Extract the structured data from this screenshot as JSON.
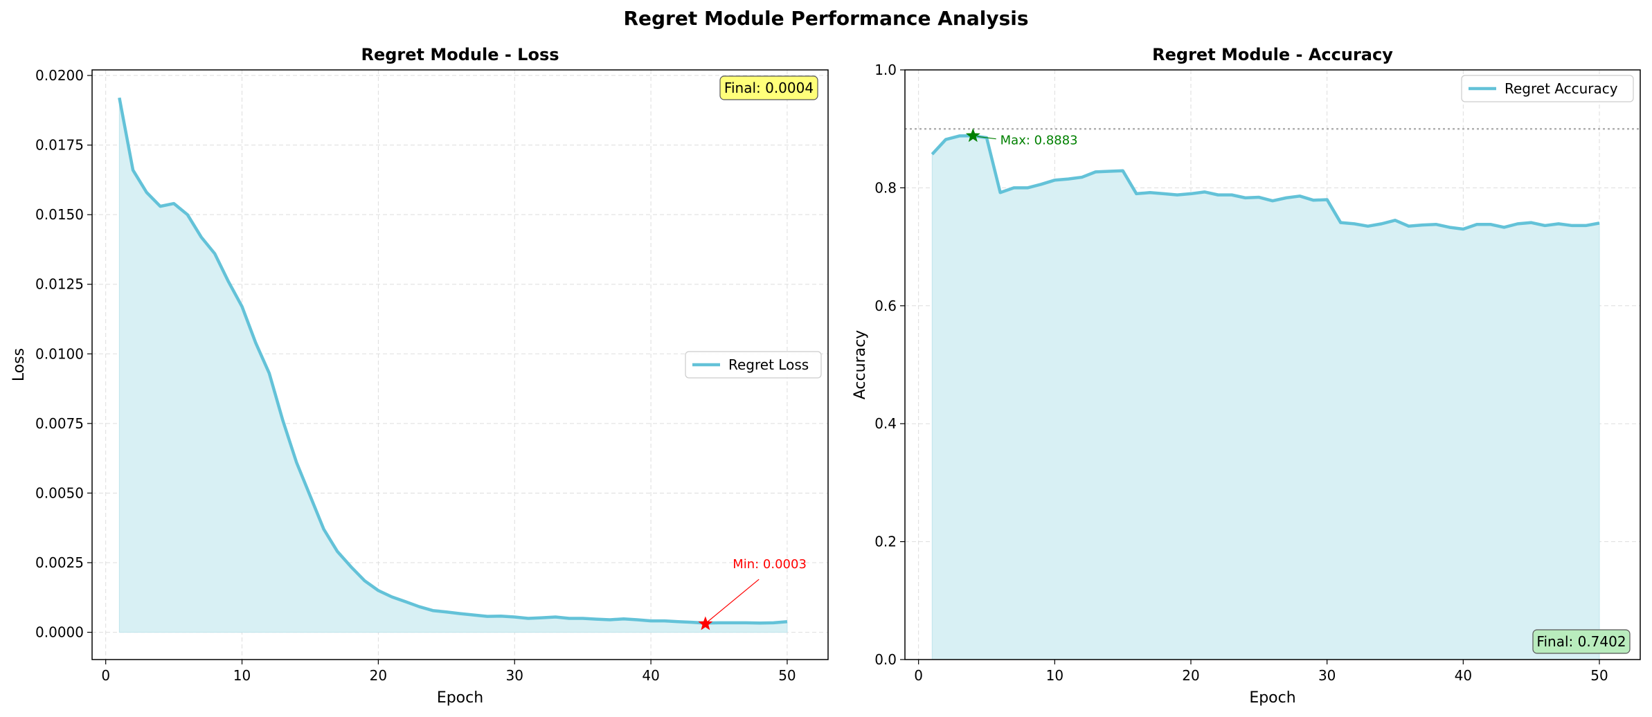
{
  "figure": {
    "suptitle": "Regret Module Performance Analysis"
  },
  "colors": {
    "line": "#63c2d8",
    "fill": "#d8f0f4",
    "grid": "#dddddd",
    "min_marker": "#ff0000",
    "max_marker": "#008000",
    "final_loss_box": "#ffff7a",
    "final_acc_box": "#b9ecbd",
    "ref_line": "#b0b0b0"
  },
  "chart_data": [
    {
      "type": "area",
      "title": "Regret Module - Loss",
      "xlabel": "Epoch",
      "ylabel": "Loss",
      "xlim": [
        -1,
        53
      ],
      "ylim": [
        -0.00098,
        0.0202
      ],
      "xticks": [
        0,
        10,
        20,
        30,
        40,
        50
      ],
      "yticks": [
        0.0,
        0.0025,
        0.005,
        0.0075,
        0.01,
        0.0125,
        0.015,
        0.0175,
        0.02
      ],
      "ytick_labels": [
        "0.0000",
        "0.0025",
        "0.0050",
        "0.0075",
        "0.0100",
        "0.0125",
        "0.0150",
        "0.0175",
        "0.0200"
      ],
      "grid": true,
      "legend_position": "center-right",
      "series": [
        {
          "name": "Regret Loss",
          "x": [
            1,
            2,
            3,
            4,
            5,
            6,
            7,
            8,
            9,
            10,
            11,
            12,
            13,
            14,
            15,
            16,
            17,
            18,
            19,
            20,
            21,
            22,
            23,
            24,
            25,
            26,
            27,
            28,
            29,
            30,
            31,
            32,
            33,
            34,
            35,
            36,
            37,
            38,
            39,
            40,
            41,
            42,
            43,
            44,
            45,
            46,
            47,
            48,
            49,
            50
          ],
          "y": [
            0.0192,
            0.0166,
            0.0158,
            0.0153,
            0.0154,
            0.015,
            0.0142,
            0.0136,
            0.0126,
            0.0117,
            0.0104,
            0.0093,
            0.0076,
            0.0061,
            0.0049,
            0.0037,
            0.0029,
            0.00235,
            0.00185,
            0.0015,
            0.00127,
            0.0011,
            0.00092,
            0.00078,
            0.00073,
            0.00067,
            0.00062,
            0.00057,
            0.00058,
            0.00055,
            0.0005,
            0.00052,
            0.00055,
            0.0005,
            0.0005,
            0.00047,
            0.00045,
            0.00048,
            0.00045,
            0.00041,
            0.00041,
            0.00038,
            0.00036,
            0.00033,
            0.00034,
            0.00034,
            0.00034,
            0.00033,
            0.00034,
            0.00038
          ]
        }
      ],
      "annotations": [
        {
          "kind": "min",
          "label": "Min: 0.0003",
          "x": 44,
          "y": 0.0003,
          "text_x": 46,
          "text_y": 0.0023
        }
      ],
      "badge": {
        "label": "Final: 0.0004",
        "position": "top-right"
      }
    },
    {
      "type": "area",
      "title": "Regret Module - Accuracy",
      "xlabel": "Epoch",
      "ylabel": "Accuracy",
      "xlim": [
        -1,
        53
      ],
      "ylim": [
        0,
        1.0
      ],
      "xticks": [
        0,
        10,
        20,
        30,
        40,
        50
      ],
      "yticks": [
        0.0,
        0.2,
        0.4,
        0.6,
        0.8,
        1.0
      ],
      "ytick_labels": [
        "0.0",
        "0.2",
        "0.4",
        "0.6",
        "0.8",
        "1.0"
      ],
      "grid": true,
      "legend_position": "top-right",
      "reference_line": 0.9,
      "series": [
        {
          "name": "Regret Accuracy",
          "x": [
            1,
            2,
            3,
            4,
            5,
            6,
            7,
            8,
            9,
            10,
            11,
            12,
            13,
            14,
            15,
            16,
            17,
            18,
            19,
            20,
            21,
            22,
            23,
            24,
            25,
            26,
            27,
            28,
            29,
            30,
            31,
            32,
            33,
            34,
            35,
            36,
            37,
            38,
            39,
            40,
            41,
            42,
            43,
            44,
            45,
            46,
            47,
            48,
            49,
            50
          ],
          "y": [
            0.857,
            0.882,
            0.888,
            0.8883,
            0.885,
            0.792,
            0.8,
            0.8,
            0.806,
            0.813,
            0.815,
            0.818,
            0.827,
            0.828,
            0.829,
            0.79,
            0.792,
            0.79,
            0.788,
            0.79,
            0.793,
            0.788,
            0.788,
            0.783,
            0.784,
            0.778,
            0.783,
            0.786,
            0.779,
            0.78,
            0.741,
            0.739,
            0.735,
            0.739,
            0.745,
            0.735,
            0.737,
            0.738,
            0.733,
            0.73,
            0.738,
            0.738,
            0.733,
            0.739,
            0.741,
            0.736,
            0.739,
            0.736,
            0.736,
            0.7402
          ]
        }
      ],
      "annotations": [
        {
          "kind": "max",
          "label": "Max: 0.8883",
          "x": 4,
          "y": 0.8883,
          "text_x": 6,
          "text_y": 0.8783
        }
      ],
      "badge": {
        "label": "Final: 0.7402",
        "position": "bottom-right"
      }
    }
  ]
}
